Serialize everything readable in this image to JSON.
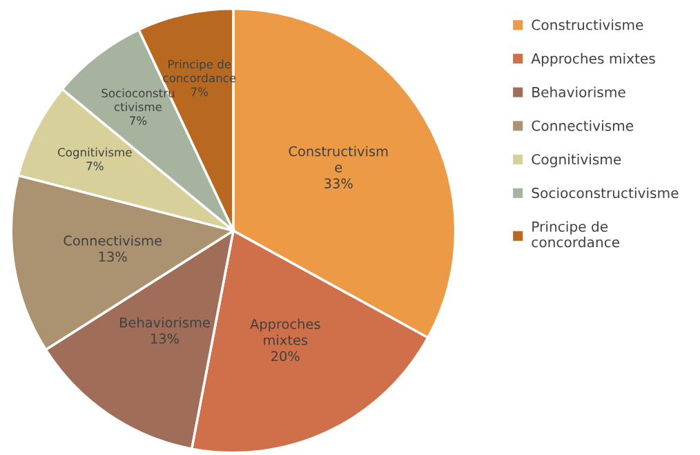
{
  "chart_data": {
    "type": "pie",
    "categories": [
      "Constructivisme",
      "Approches mixtes",
      "Behaviorisme",
      "Connectivisme",
      "Cognitivisme",
      "Socioconstructivisme",
      "Principe de concordance"
    ],
    "values": [
      33,
      20,
      13,
      13,
      7,
      7,
      7
    ],
    "value_labels": [
      "33%",
      "20%",
      "13%",
      "13%",
      "7%",
      "7%",
      "7%"
    ],
    "colors": [
      "#ec9a45",
      "#d0704a",
      "#a06e58",
      "#ab9372",
      "#d8d09a",
      "#a6b39e",
      "#b8691f"
    ],
    "legend": "right"
  }
}
